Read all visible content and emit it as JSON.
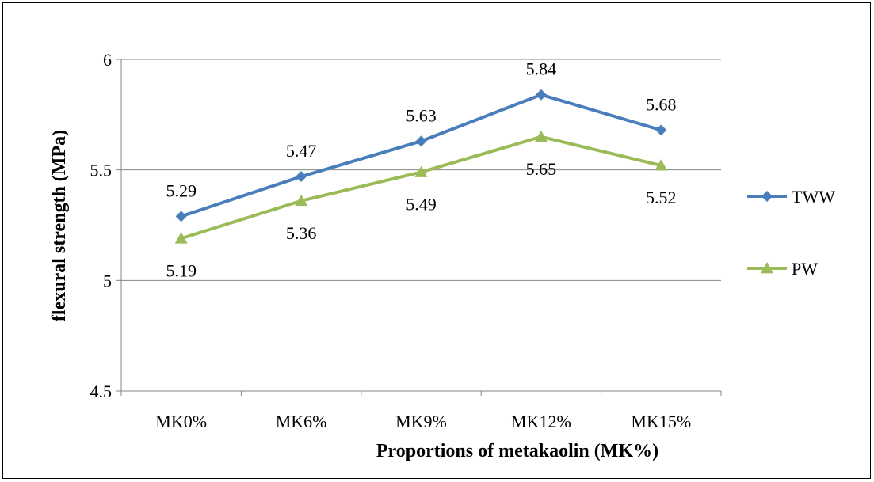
{
  "chart_data": {
    "type": "line",
    "categories": [
      "MK0%",
      "MK6%",
      "MK9%",
      "MK12%",
      "MK15%"
    ],
    "series": [
      {
        "name": "TWW",
        "values": [
          5.29,
          5.47,
          5.63,
          5.84,
          5.68
        ],
        "color": "#4A7EBB",
        "marker": "diamond",
        "labels": [
          "5.29",
          "5.47",
          "5.63",
          "5.84",
          "5.68"
        ]
      },
      {
        "name": "PW",
        "values": [
          5.19,
          5.36,
          5.49,
          5.65,
          5.52
        ],
        "color": "#9BBB59",
        "marker": "triangle",
        "labels": [
          "5.19",
          "5.36",
          "5.49",
          "5.65",
          "5.52"
        ]
      }
    ],
    "xlabel": "Proportions of metakaolin (MK%)",
    "ylabel": "flexural strength (MPa)",
    "ylim": [
      4.5,
      6
    ],
    "yticks": [
      4.5,
      5,
      5.5,
      6
    ],
    "ytick_labels": [
      "4.5",
      "5",
      "5.5",
      "6"
    ],
    "grid": true,
    "legend": "right"
  }
}
